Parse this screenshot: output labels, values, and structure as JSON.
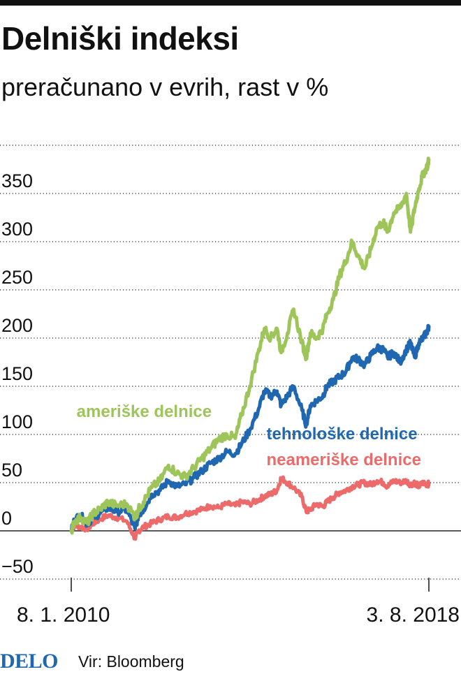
{
  "header": {
    "title": "Delniški indeksi",
    "subtitle": "preračunano v evrih, rast v %"
  },
  "footer": {
    "brand": "DELO",
    "source": "Vir: Bloomberg"
  },
  "colors": {
    "us": "#9ec55a",
    "tech": "#1f67b1",
    "nonus": "#ec6a69",
    "text": "#111111",
    "grid": "#222222"
  },
  "chart_data": {
    "type": "line",
    "title": "Delniški indeksi",
    "subtitle": "preračunano v evrih, rast v %",
    "xlabel": "",
    "ylabel": "",
    "ylim": [
      -60,
      400
    ],
    "grid": true,
    "yticks": [
      350,
      300,
      250,
      200,
      150,
      100,
      50,
      0,
      -50
    ],
    "x_start": 2010.02,
    "x_end": 2018.59,
    "x_tick_labels": [
      "8. 1. 2010",
      "3. 8. 2018"
    ],
    "x_tick_positions": [
      2010.02,
      2018.59
    ],
    "series": [
      {
        "name": "ameriške delnice",
        "color": "#9ec55a",
        "x": [
          2010.02,
          2010.1,
          2010.25,
          2010.4,
          2010.55,
          2010.7,
          2010.9,
          2011.1,
          2011.35,
          2011.55,
          2011.63,
          2011.75,
          2011.95,
          2012.15,
          2012.35,
          2012.55,
          2012.75,
          2012.95,
          2013.15,
          2013.35,
          2013.55,
          2013.75,
          2013.95,
          2014.1,
          2014.3,
          2014.5,
          2014.65,
          2014.8,
          2014.95,
          2015.05,
          2015.2,
          2015.35,
          2015.55,
          2015.65,
          2015.75,
          2015.9,
          2016.05,
          2016.15,
          2016.3,
          2016.45,
          2016.6,
          2016.75,
          2016.9,
          2017.05,
          2017.2,
          2017.35,
          2017.5,
          2017.6,
          2017.75,
          2017.9,
          2018.05,
          2018.15,
          2018.25,
          2018.35,
          2018.45,
          2018.55,
          2018.59
        ],
        "values": [
          0,
          10,
          14,
          8,
          18,
          22,
          30,
          26,
          28,
          14,
          22,
          30,
          45,
          52,
          68,
          60,
          56,
          65,
          75,
          85,
          95,
          100,
          96,
          120,
          150,
          185,
          210,
          200,
          210,
          185,
          205,
          230,
          195,
          180,
          205,
          200,
          210,
          225,
          240,
          265,
          280,
          300,
          285,
          272,
          292,
          315,
          320,
          310,
          330,
          335,
          350,
          310,
          335,
          355,
          370,
          378,
          385
        ]
      },
      {
        "name": "tehnološke delnice",
        "color": "#1f67b1",
        "x": [
          2010.02,
          2010.1,
          2010.25,
          2010.4,
          2010.55,
          2010.7,
          2010.9,
          2011.1,
          2011.35,
          2011.55,
          2011.63,
          2011.75,
          2011.95,
          2012.15,
          2012.35,
          2012.55,
          2012.75,
          2012.95,
          2013.15,
          2013.35,
          2013.55,
          2013.75,
          2013.95,
          2014.1,
          2014.3,
          2014.5,
          2014.65,
          2014.8,
          2014.95,
          2015.05,
          2015.2,
          2015.35,
          2015.55,
          2015.65,
          2015.75,
          2015.9,
          2016.05,
          2016.15,
          2016.3,
          2016.45,
          2016.6,
          2016.75,
          2016.9,
          2017.05,
          2017.2,
          2017.35,
          2017.5,
          2017.6,
          2017.75,
          2017.9,
          2018.05,
          2018.15,
          2018.25,
          2018.35,
          2018.45,
          2018.55,
          2018.59
        ],
        "values": [
          0,
          12,
          16,
          7,
          14,
          18,
          24,
          20,
          22,
          2,
          16,
          22,
          38,
          42,
          52,
          46,
          48,
          55,
          62,
          70,
          75,
          82,
          80,
          90,
          105,
          125,
          145,
          140,
          145,
          130,
          140,
          150,
          125,
          110,
          130,
          135,
          140,
          150,
          155,
          160,
          165,
          180,
          178,
          172,
          182,
          190,
          188,
          180,
          185,
          175,
          188,
          195,
          180,
          195,
          200,
          207,
          212
        ]
      },
      {
        "name": "neameriške delnice",
        "color": "#ec6a69",
        "x": [
          2010.02,
          2010.1,
          2010.25,
          2010.4,
          2010.55,
          2010.7,
          2010.9,
          2011.1,
          2011.35,
          2011.55,
          2011.63,
          2011.75,
          2011.95,
          2012.15,
          2012.35,
          2012.55,
          2012.75,
          2012.95,
          2013.15,
          2013.35,
          2013.55,
          2013.75,
          2013.95,
          2014.1,
          2014.3,
          2014.5,
          2014.65,
          2014.8,
          2014.95,
          2015.05,
          2015.2,
          2015.35,
          2015.55,
          2015.65,
          2015.75,
          2015.9,
          2016.05,
          2016.15,
          2016.3,
          2016.45,
          2016.6,
          2016.75,
          2016.9,
          2017.05,
          2017.2,
          2017.35,
          2017.5,
          2017.6,
          2017.75,
          2017.9,
          2018.05,
          2018.15,
          2018.25,
          2018.35,
          2018.45,
          2018.55,
          2018.59
        ],
        "values": [
          0,
          6,
          4,
          2,
          8,
          12,
          16,
          14,
          10,
          -8,
          0,
          4,
          8,
          12,
          15,
          14,
          18,
          20,
          22,
          26,
          24,
          28,
          26,
          30,
          28,
          32,
          36,
          38,
          42,
          55,
          50,
          45,
          35,
          20,
          22,
          28,
          25,
          30,
          35,
          40,
          42,
          46,
          48,
          50,
          48,
          52,
          50,
          46,
          52,
          50,
          52,
          48,
          50,
          46,
          50,
          48,
          49
        ]
      }
    ],
    "annotations": [
      {
        "text": "ameriške delnice",
        "series": "ameriške delnice",
        "x": 2010.55,
        "y": 118
      },
      {
        "text": "tehnološke delnice",
        "series": "tehnološke delnice",
        "x": 2015.1,
        "y": 95
      },
      {
        "text": "neameriške delnice",
        "series": "neameriške delnice",
        "x": 2015.1,
        "y": 68
      }
    ]
  }
}
